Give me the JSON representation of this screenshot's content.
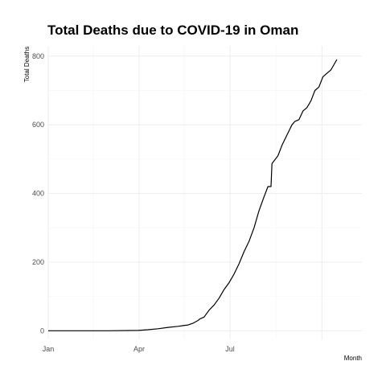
{
  "chart_data": {
    "type": "line",
    "title": "Total Deaths due to COVID-19 in Oman",
    "xlabel": "Month",
    "ylabel": "Total Deaths",
    "x_ticks": [
      "Jan",
      "Apr",
      "Jul"
    ],
    "y_ticks": [
      0,
      200,
      400,
      600,
      800
    ],
    "xlim": [
      "2020-01-01",
      "2020-11-10"
    ],
    "ylim": [
      -25,
      830
    ],
    "grid": true,
    "legend": "none",
    "line_color": "#000000",
    "series": [
      {
        "x": [
          "2020-01-01",
          "2020-03-01",
          "2020-03-31",
          "2020-04-10",
          "2020-04-20",
          "2020-04-30",
          "2020-05-10",
          "2020-05-15",
          "2020-05-20",
          "2020-05-25",
          "2020-05-30",
          "2020-06-01",
          "2020-06-05",
          "2020-06-10",
          "2020-06-15",
          "2020-06-20",
          "2020-06-25",
          "2020-06-30",
          "2020-07-05",
          "2020-07-10",
          "2020-07-15",
          "2020-07-20",
          "2020-07-25",
          "2020-07-30",
          "2020-08-04",
          "2020-08-08",
          "2020-08-11",
          "2020-08-12",
          "2020-08-18",
          "2020-08-22",
          "2020-08-27",
          "2020-09-01",
          "2020-09-04",
          "2020-09-08",
          "2020-09-12",
          "2020-09-16",
          "2020-09-20",
          "2020-09-24",
          "2020-09-28",
          "2020-10-02",
          "2020-10-06",
          "2020-10-10",
          "2020-10-13",
          "2020-10-16"
        ],
        "y": [
          0,
          0,
          1,
          3,
          6,
          10,
          13,
          15,
          17,
          22,
          30,
          35,
          40,
          60,
          75,
          95,
          120,
          140,
          165,
          195,
          230,
          260,
          300,
          350,
          390,
          420,
          420,
          487,
          510,
          540,
          570,
          600,
          610,
          615,
          640,
          650,
          670,
          700,
          710,
          740,
          750,
          760,
          775,
          790
        ]
      }
    ]
  }
}
